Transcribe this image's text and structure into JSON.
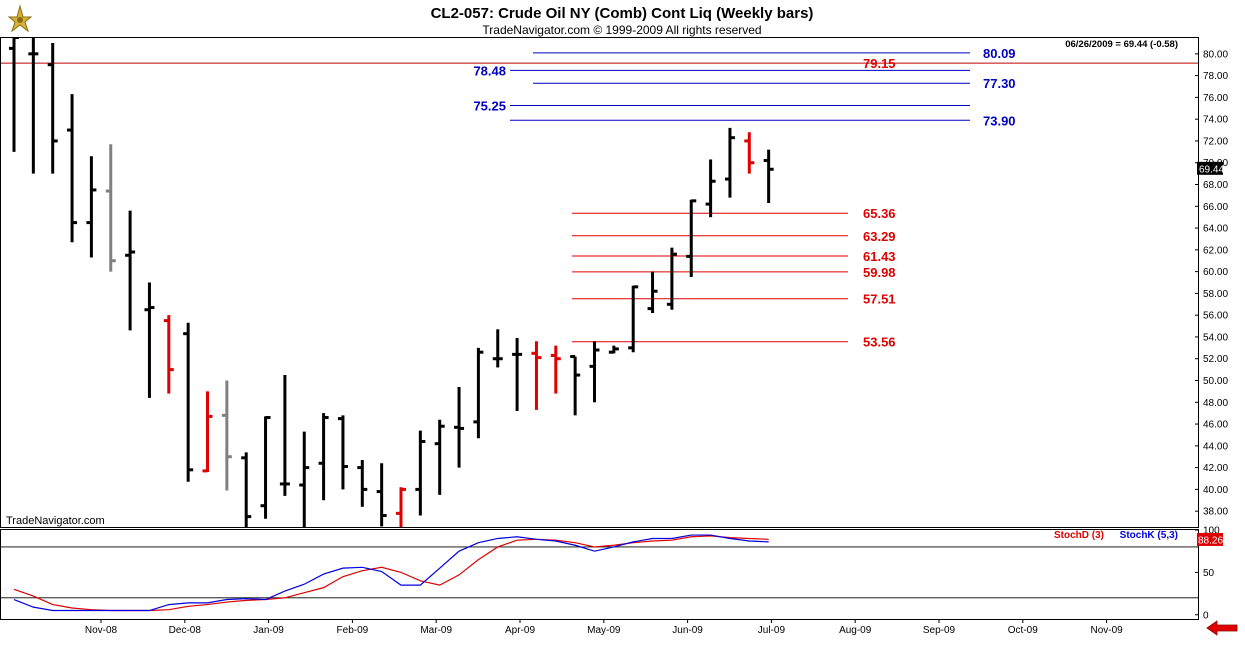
{
  "header": {
    "title": "CL2-057:  Crude Oil NY (Comb) Cont Liq  (Weekly bars)",
    "subtitle": "TradeNavigator.com © 1999-2009 All rights reserved",
    "last_quote": "06/26/2009 = 69.44 (-0.58)",
    "watermark": "TradeNavigator.com"
  },
  "colors": {
    "up_bar": "#000000",
    "down_bar": "#e00000",
    "neutral_bar": "#808080",
    "stoch_d": "#e00000",
    "stoch_k": "#0000e0",
    "fib_support": "#e00000",
    "fib_resistance": "#0000c0",
    "red_hline": "#c00000"
  },
  "chart_data": [
    {
      "type": "ohlc",
      "title": "CL2-057:  Crude Oil NY (Comb) Cont Liq  (Weekly bars)",
      "ylim": [
        36.5,
        81.5
      ],
      "y_ticks": [
        "38.00",
        "40.00",
        "42.00",
        "44.00",
        "46.00",
        "48.00",
        "50.00",
        "52.00",
        "54.00",
        "56.00",
        "58.00",
        "60.00",
        "62.00",
        "64.00",
        "66.00",
        "68.00",
        "70.00",
        "72.00",
        "74.00",
        "76.00",
        "78.00",
        "80.00"
      ],
      "x_labels": [
        "Nov-08",
        "Dec-08",
        "Jan-09",
        "Feb-09",
        "Mar-09",
        "Apr-09",
        "May-09",
        "Jun-09",
        "Jul-09",
        "Aug-09",
        "Sep-09",
        "Oct-09",
        "Nov-09"
      ],
      "last_price_label": "69.44",
      "horizontal_line": 79.15,
      "bars": [
        {
          "h": 82.5,
          "l": 71.0,
          "o": 80.5,
          "c": 81.5,
          "color": "black"
        },
        {
          "h": 81.5,
          "l": 69.0,
          "o": 80.0,
          "c": 80.0,
          "color": "black"
        },
        {
          "h": 81.0,
          "l": 69.0,
          "o": 79.0,
          "c": 72.0,
          "color": "black"
        },
        {
          "h": 76.3,
          "l": 62.7,
          "o": 73.0,
          "c": 64.5,
          "color": "black"
        },
        {
          "h": 70.6,
          "l": 61.3,
          "o": 64.5,
          "c": 67.5,
          "color": "black"
        },
        {
          "h": 71.7,
          "l": 60.0,
          "o": 67.4,
          "c": 61.0,
          "color": "gray"
        },
        {
          "h": 65.6,
          "l": 54.6,
          "o": 61.5,
          "c": 61.8,
          "color": "black"
        },
        {
          "h": 59.0,
          "l": 48.4,
          "o": 56.5,
          "c": 56.7,
          "color": "black"
        },
        {
          "h": 56.0,
          "l": 48.8,
          "o": 55.5,
          "c": 51.0,
          "color": "red"
        },
        {
          "h": 55.3,
          "l": 40.7,
          "o": 54.3,
          "c": 41.8,
          "color": "black"
        },
        {
          "h": 49.0,
          "l": 41.6,
          "o": 41.7,
          "c": 46.7,
          "color": "red"
        },
        {
          "h": 50.0,
          "l": 39.9,
          "o": 46.8,
          "c": 43.0,
          "color": "gray"
        },
        {
          "h": 43.4,
          "l": 34.0,
          "o": 42.9,
          "c": 37.5,
          "color": "black"
        },
        {
          "h": 46.7,
          "l": 37.3,
          "o": 38.5,
          "c": 46.6,
          "color": "black"
        },
        {
          "h": 50.5,
          "l": 39.4,
          "o": 40.5,
          "c": 40.5,
          "color": "black"
        },
        {
          "h": 45.3,
          "l": 36.5,
          "o": 40.4,
          "c": 42.0,
          "color": "black"
        },
        {
          "h": 47.0,
          "l": 39.0,
          "o": 42.4,
          "c": 46.6,
          "color": "black"
        },
        {
          "h": 46.8,
          "l": 40.0,
          "o": 46.5,
          "c": 42.1,
          "color": "black"
        },
        {
          "h": 42.7,
          "l": 38.4,
          "o": 42.0,
          "c": 40.0,
          "color": "black"
        },
        {
          "h": 42.4,
          "l": 36.6,
          "o": 39.8,
          "c": 37.6,
          "color": "black"
        },
        {
          "h": 40.2,
          "l": 36.5,
          "o": 37.8,
          "c": 40.0,
          "color": "red"
        },
        {
          "h": 45.4,
          "l": 37.6,
          "o": 40.0,
          "c": 44.4,
          "color": "black"
        },
        {
          "h": 46.4,
          "l": 39.5,
          "o": 44.2,
          "c": 45.8,
          "color": "black"
        },
        {
          "h": 49.4,
          "l": 42.0,
          "o": 45.7,
          "c": 45.6,
          "color": "black"
        },
        {
          "h": 53.0,
          "l": 44.7,
          "o": 46.2,
          "c": 52.6,
          "color": "black"
        },
        {
          "h": 54.7,
          "l": 51.2,
          "o": 52.0,
          "c": 52.0,
          "color": "black"
        },
        {
          "h": 53.9,
          "l": 47.2,
          "o": 52.4,
          "c": 52.4,
          "color": "black"
        },
        {
          "h": 53.6,
          "l": 47.3,
          "o": 52.5,
          "c": 52.1,
          "color": "red"
        },
        {
          "h": 53.2,
          "l": 48.8,
          "o": 52.3,
          "c": 52.0,
          "color": "red"
        },
        {
          "h": 52.2,
          "l": 46.8,
          "o": 52.2,
          "c": 50.5,
          "color": "black"
        },
        {
          "h": 53.6,
          "l": 48.0,
          "o": 51.3,
          "c": 52.8,
          "color": "black"
        },
        {
          "h": 53.2,
          "l": 52.5,
          "o": 52.6,
          "c": 52.9,
          "color": "black"
        },
        {
          "h": 58.7,
          "l": 52.6,
          "o": 53.0,
          "c": 58.6,
          "color": "black"
        },
        {
          "h": 60.0,
          "l": 56.2,
          "o": 56.6,
          "c": 58.2,
          "color": "black"
        },
        {
          "h": 62.2,
          "l": 56.5,
          "o": 57.0,
          "c": 61.6,
          "color": "black"
        },
        {
          "h": 66.6,
          "l": 59.5,
          "o": 61.4,
          "c": 66.5,
          "color": "black"
        },
        {
          "h": 70.3,
          "l": 65.0,
          "o": 66.2,
          "c": 68.3,
          "color": "black"
        },
        {
          "h": 73.2,
          "l": 66.8,
          "o": 68.5,
          "c": 72.3,
          "color": "black"
        },
        {
          "h": 72.8,
          "l": 69.0,
          "o": 72.0,
          "c": 70.0,
          "color": "red"
        },
        {
          "h": 71.2,
          "l": 66.3,
          "o": 70.2,
          "c": 69.4,
          "color": "black"
        }
      ],
      "fib_levels": [
        {
          "value": 80.09,
          "label": "80.09",
          "color": "blue"
        },
        {
          "value": 79.15,
          "label": "79.15",
          "color": "red"
        },
        {
          "value": 78.48,
          "label": "78.48",
          "color": "blue"
        },
        {
          "value": 77.3,
          "label": "77.30",
          "color": "blue"
        },
        {
          "value": 75.25,
          "label": "75.25",
          "color": "blue"
        },
        {
          "value": 73.9,
          "label": "73.90",
          "color": "blue"
        },
        {
          "value": 65.36,
          "label": "65.36",
          "color": "red"
        },
        {
          "value": 63.29,
          "label": "63.29",
          "color": "red"
        },
        {
          "value": 61.43,
          "label": "61.43",
          "color": "red"
        },
        {
          "value": 59.98,
          "label": "59.98",
          "color": "red"
        },
        {
          "value": 57.51,
          "label": "57.51",
          "color": "red"
        },
        {
          "value": 53.56,
          "label": "53.56",
          "color": "red"
        }
      ]
    },
    {
      "type": "line",
      "ylim": [
        -5,
        100
      ],
      "y_ticks": [
        "0",
        "50",
        "100"
      ],
      "reference_lines": [
        80,
        20
      ],
      "last_value_label": "88.26",
      "series": [
        {
          "name": "StochD (3)",
          "color": "red",
          "values": [
            30,
            22,
            12,
            8,
            6,
            5,
            5,
            5,
            6,
            10,
            12,
            15,
            17,
            18,
            20,
            26,
            32,
            45,
            52,
            56,
            50,
            40,
            35,
            47,
            65,
            80,
            88,
            89,
            88,
            85,
            80,
            82,
            85,
            87,
            88,
            92,
            93,
            91,
            90,
            89
          ]
        },
        {
          "name": "StochK (5,3)",
          "color": "blue",
          "values": [
            18,
            9,
            5,
            5,
            5,
            5,
            5,
            5,
            12,
            14,
            14,
            18,
            19,
            18,
            28,
            36,
            48,
            55,
            56,
            51,
            35,
            35,
            55,
            75,
            85,
            90,
            92,
            89,
            87,
            82,
            75,
            80,
            86,
            90,
            90,
            94,
            94,
            90,
            87,
            86
          ]
        }
      ]
    }
  ]
}
